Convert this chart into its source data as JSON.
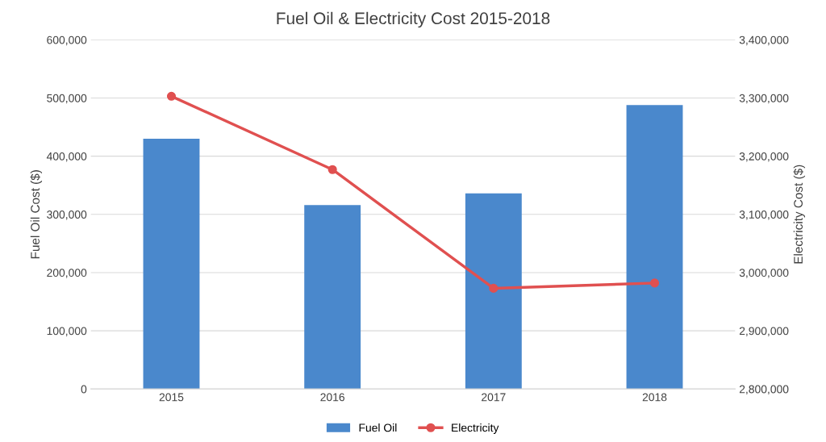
{
  "chart_data": {
    "type": "bar",
    "title": "Fuel Oil & Electricity Cost 2015-2018",
    "categories": [
      "2015",
      "2016",
      "2017",
      "2018"
    ],
    "ylabel": "Fuel Oil Cost ($)",
    "y2label": "Electricity Cost ($)",
    "series": [
      {
        "name": "Fuel Oil",
        "color": "#4a88cc",
        "values": [
          430000,
          316000,
          336000,
          488000
        ]
      },
      {
        "name": "Electricity",
        "type": "line",
        "axis": "y2",
        "color": "#e05050",
        "marker": "circle",
        "values": [
          3303000,
          3177000,
          2973000,
          2982000
        ]
      }
    ],
    "ylim": [
      0,
      600000
    ],
    "yticks": [
      {
        "value": 0,
        "label": "0"
      },
      {
        "value": 100000,
        "label": "100,000"
      },
      {
        "value": 200000,
        "label": "200,000"
      },
      {
        "value": 300000,
        "label": "300,000"
      },
      {
        "value": 400000,
        "label": "400,000"
      },
      {
        "value": 500000,
        "label": "500,000"
      },
      {
        "value": 600000,
        "label": "600,000"
      }
    ],
    "y2lim": [
      2800000,
      3400000
    ],
    "y2ticks": [
      {
        "value": 2800000,
        "label": "2,800,000"
      },
      {
        "value": 2900000,
        "label": "2,900,000"
      },
      {
        "value": 3000000,
        "label": "3,000,000"
      },
      {
        "value": 3100000,
        "label": "3,100,000"
      },
      {
        "value": 3200000,
        "label": "3,200,000"
      },
      {
        "value": 3300000,
        "label": "3,300,000"
      },
      {
        "value": 3400000,
        "label": "3,400,000"
      }
    ],
    "grid": "y",
    "legend": "bottom"
  }
}
